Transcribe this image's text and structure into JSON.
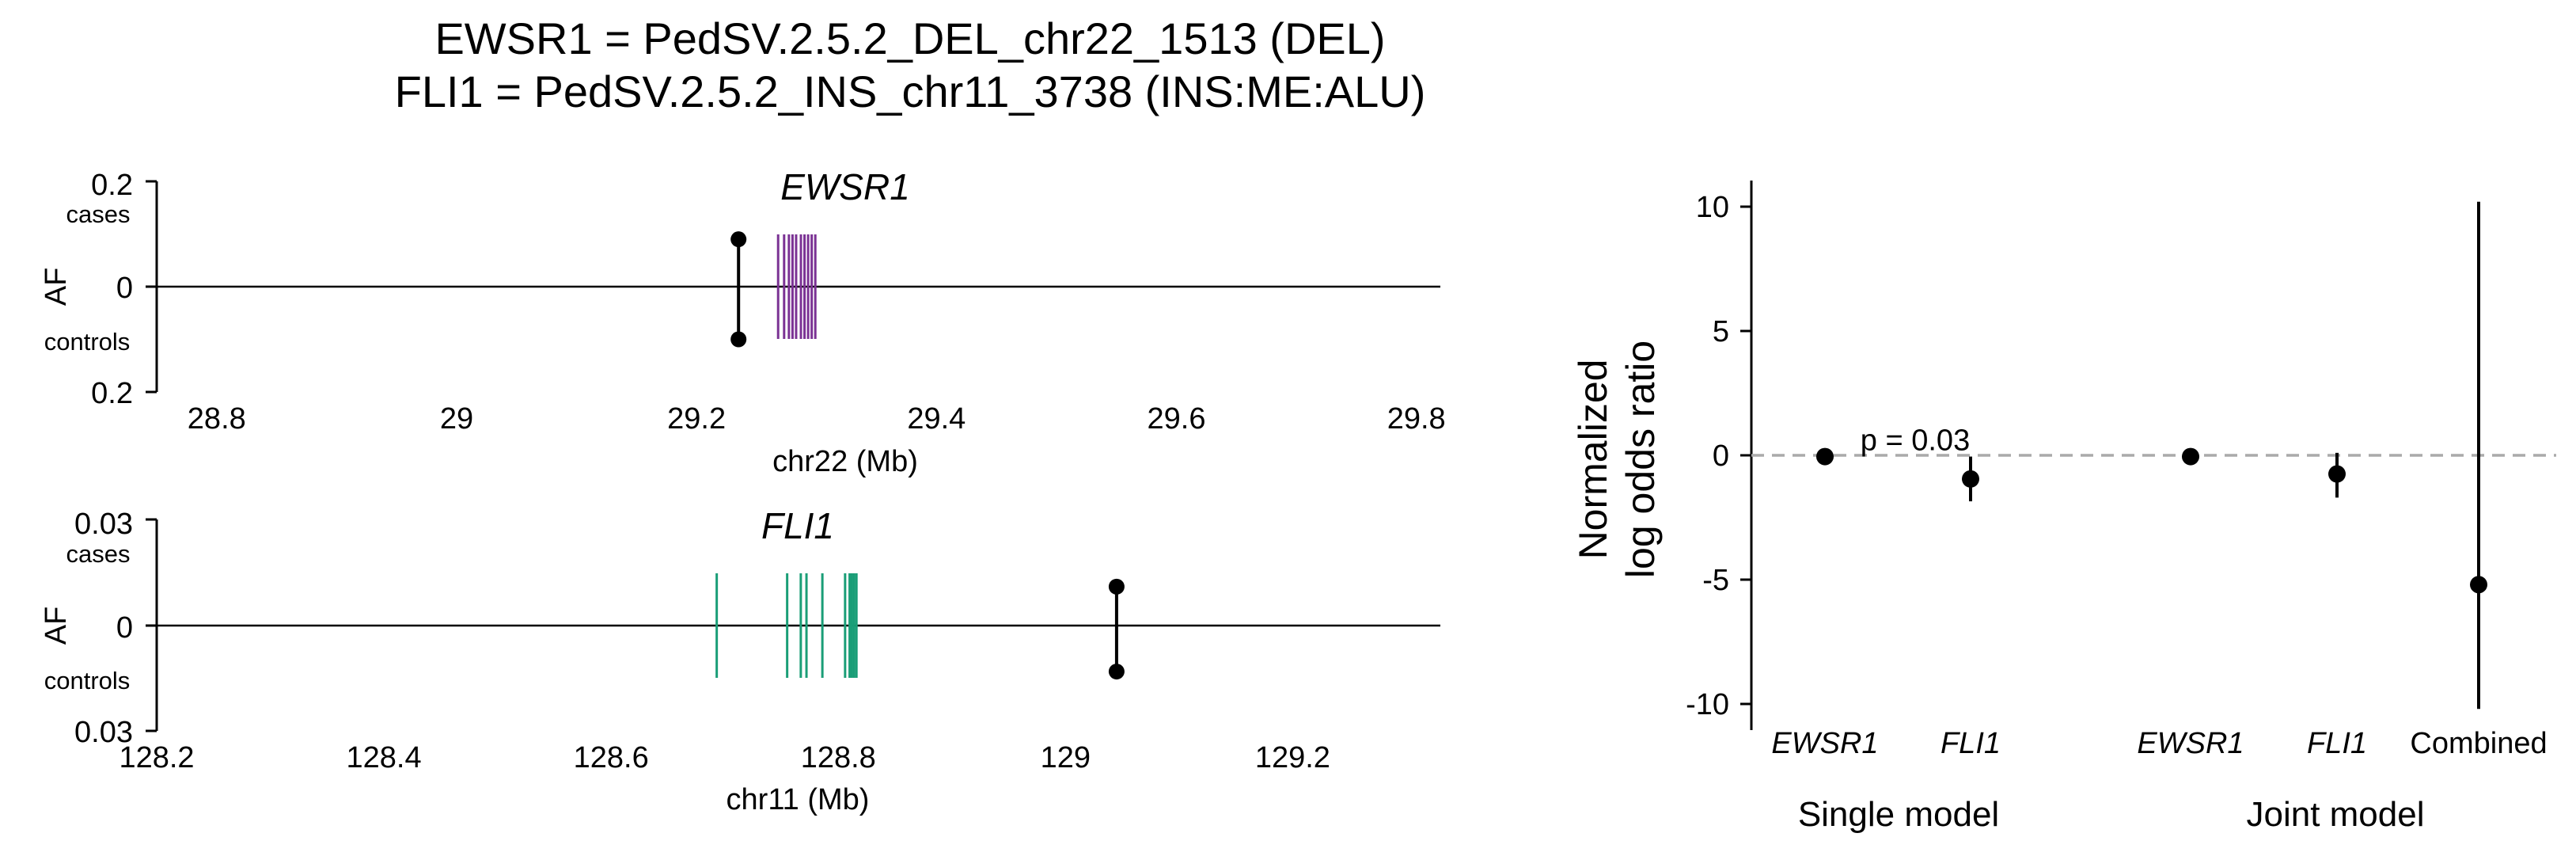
{
  "figure": {
    "title_lines": [
      "EWSR1 = PedSV.2.5.2_DEL_chr22_1513 (DEL)",
      "FLI1 = PedSV.2.5.2_INS_chr11_3738 (INS:ME:ALU)"
    ]
  },
  "chart_data": [
    {
      "type": "scatter",
      "panel": "EWSR1 locus",
      "gene_label": "EWSR1",
      "xlabel": "chr22 (Mb)",
      "ylabel": "AF",
      "xlim": [
        28.75,
        29.82
      ],
      "ylim": [
        -0.2,
        0.2
      ],
      "x_ticks": [
        28.8,
        29.0,
        29.2,
        29.4,
        29.6,
        29.8
      ],
      "y_tick_labels": [
        "0.2",
        "0",
        "0.2"
      ],
      "y_side_labels": {
        "top": "cases",
        "bottom": "controls"
      },
      "variant": {
        "position": 29.235,
        "af_cases": 0.09,
        "af_controls": 0.1
      },
      "gene_color": "#7b3294",
      "exons": [
        29.268,
        29.273,
        29.277,
        29.28,
        29.283,
        29.287,
        29.29,
        29.293,
        29.296,
        29.299
      ]
    },
    {
      "type": "scatter",
      "panel": "FLI1 locus",
      "gene_label": "FLI1",
      "xlabel": "chr11 (Mb)",
      "ylabel": "AF",
      "xlim": [
        128.2,
        129.33
      ],
      "ylim": [
        -0.03,
        0.03
      ],
      "x_ticks": [
        128.2,
        128.4,
        128.6,
        128.8,
        129.0,
        129.2
      ],
      "y_tick_labels": [
        "0.03",
        "0",
        "0.03"
      ],
      "y_side_labels": {
        "top": "cases",
        "bottom": "controls"
      },
      "variant": {
        "position": 129.045,
        "af_cases": 0.011,
        "af_controls": 0.013
      },
      "gene_color": "#1a9e77",
      "exons": [
        128.693,
        128.755,
        128.767,
        128.772,
        128.786,
        128.806,
        128.81,
        128.812,
        128.814,
        128.816
      ]
    },
    {
      "type": "scatter",
      "panel": "log odds ratio",
      "ylabel_lines": [
        "Normalized",
        "log odds ratio"
      ],
      "ylim": [
        -11,
        11
      ],
      "y_ticks": [
        10,
        5,
        0,
        -5,
        -10
      ],
      "reference_line": 0,
      "groups": [
        "Single model",
        "Joint model"
      ],
      "points": [
        {
          "label": "EWSR1",
          "group": "Single model",
          "italic": true,
          "value": -0.05,
          "lo": -0.05,
          "hi": -0.05
        },
        {
          "label": "FLI1",
          "group": "Single model",
          "italic": true,
          "value": -0.95,
          "lo": -1.85,
          "hi": -0.05,
          "annotation": "p = 0.03"
        },
        {
          "label": "EWSR1",
          "group": "Joint model",
          "italic": true,
          "value": -0.05,
          "lo": -0.05,
          "hi": -0.05
        },
        {
          "label": "FLI1",
          "group": "Joint model",
          "italic": true,
          "value": -0.75,
          "lo": -1.7,
          "hi": 0.1
        },
        {
          "label": "Combined",
          "group": "Joint model",
          "italic": false,
          "value": -5.2,
          "lo": -10.2,
          "hi": 10.2
        }
      ]
    }
  ]
}
